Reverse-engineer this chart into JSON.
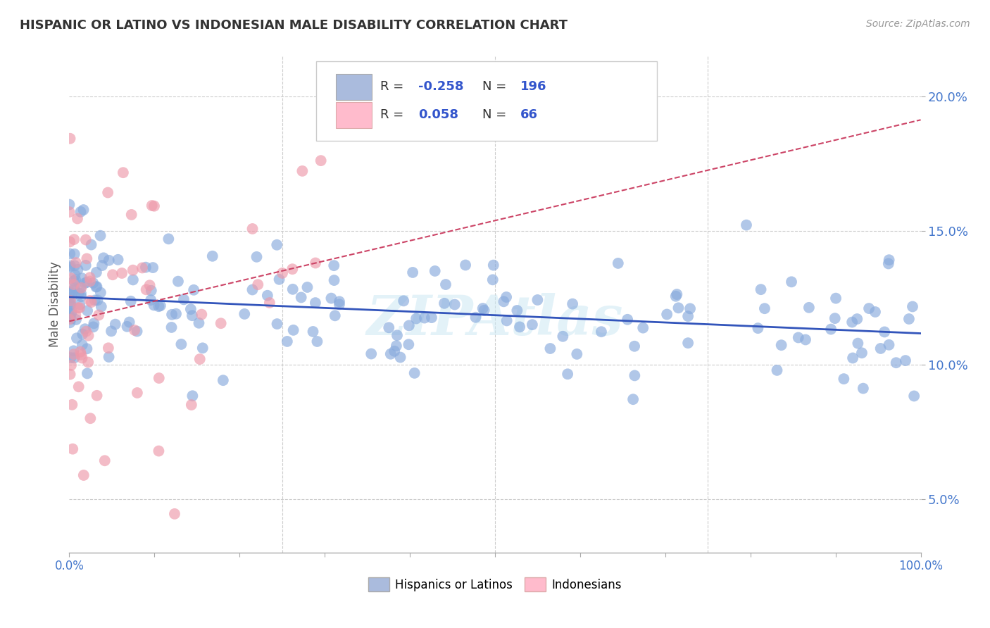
{
  "title": "HISPANIC OR LATINO VS INDONESIAN MALE DISABILITY CORRELATION CHART",
  "source": "Source: ZipAtlas.com",
  "ylabel": "Male Disability",
  "y_ticks": [
    0.05,
    0.1,
    0.15,
    0.2
  ],
  "y_tick_labels": [
    "5.0%",
    "10.0%",
    "15.0%",
    "20.0%"
  ],
  "blue_scatter_color": "#88aadd",
  "pink_scatter_color": "#ee99aa",
  "blue_line_color": "#3355bb",
  "pink_line_color": "#cc4466",
  "grid_color": "#cccccc",
  "watermark": "ZIPAtlas",
  "xlim": [
    0,
    1
  ],
  "ylim": [
    0.03,
    0.215
  ],
  "legend_blue_color": "#aabbdd",
  "legend_pink_color": "#ffbbcc",
  "legend_text_color": "#3355cc",
  "R_label_color": "#333333",
  "blue_R": "-0.258",
  "blue_N": "196",
  "pink_R": "0.058",
  "pink_N": "66"
}
